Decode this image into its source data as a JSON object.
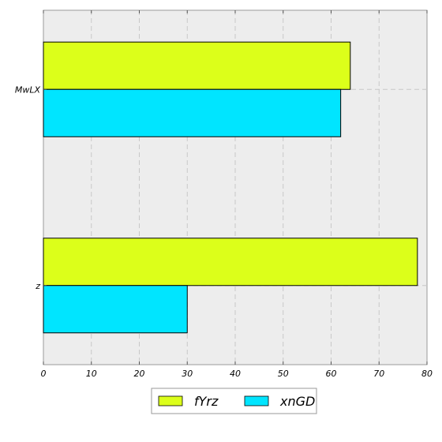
{
  "chart_data": {
    "type": "bar",
    "orientation": "horizontal",
    "categories": [
      "MwLX",
      "z"
    ],
    "series": [
      {
        "name": "fYrz",
        "values": [
          64,
          78
        ],
        "color": "#dcff1a"
      },
      {
        "name": "xnGD",
        "values": [
          62,
          30
        ],
        "color": "#00e5ff"
      }
    ],
    "xlim": [
      0,
      80
    ],
    "xticks": [
      "0",
      "10",
      "20",
      "30",
      "40",
      "50",
      "60",
      "70",
      "80"
    ],
    "grid": true,
    "legend_position": "bottom-center",
    "background_color": "#ededed"
  }
}
